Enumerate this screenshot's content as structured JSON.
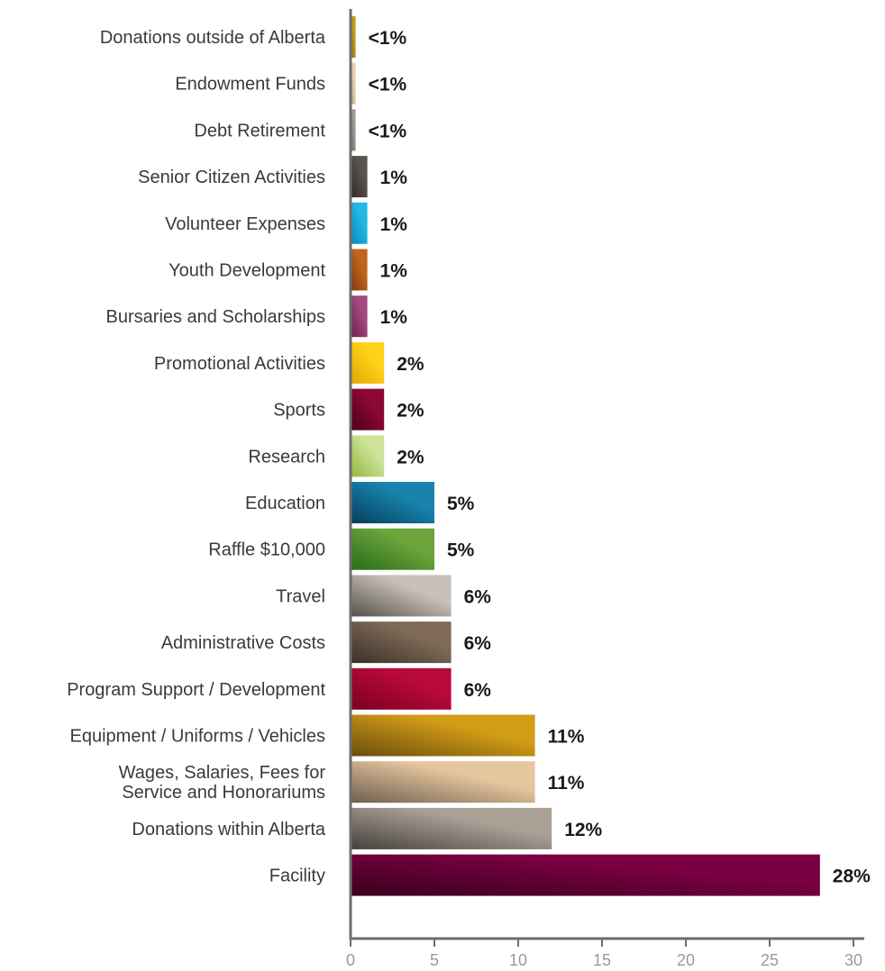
{
  "chart_data": {
    "type": "bar",
    "orientation": "horizontal",
    "title": "",
    "xlabel": "",
    "ylabel": "",
    "xlim": [
      0,
      30
    ],
    "x_ticks": [
      0,
      5,
      10,
      15,
      20,
      25,
      30
    ],
    "grid": false,
    "legend": "none",
    "categories": [
      {
        "lines": [
          "Donations outside of Alberta"
        ],
        "value": 0.3,
        "label": "<1%",
        "colors": [
          "#8a6a12",
          "#c29a1c"
        ]
      },
      {
        "lines": [
          "Endowment Funds"
        ],
        "value": 0.3,
        "label": "<1%",
        "colors": [
          "#b59c80",
          "#e8cfae"
        ]
      },
      {
        "lines": [
          "Debt Retirement"
        ],
        "value": 0.3,
        "label": "<1%",
        "colors": [
          "#6e6864",
          "#a29a93"
        ]
      },
      {
        "lines": [
          "Senior Citizen Activities"
        ],
        "value": 1,
        "label": "1%",
        "colors": [
          "#2e2a28",
          "#5a524d"
        ]
      },
      {
        "lines": [
          "Volunteer Expenses"
        ],
        "value": 1,
        "label": "1%",
        "colors": [
          "#0a86b8",
          "#22b8e6"
        ]
      },
      {
        "lines": [
          "Youth Development"
        ],
        "value": 1,
        "label": "1%",
        "colors": [
          "#7a3a0c",
          "#c2651c"
        ]
      },
      {
        "lines": [
          "Bursaries and Scholarships"
        ],
        "value": 1,
        "label": "1%",
        "colors": [
          "#6a1e4a",
          "#a24a80"
        ]
      },
      {
        "lines": [
          "Promotional Activities"
        ],
        "value": 2,
        "label": "2%",
        "colors": [
          "#e2a600",
          "#ffd21a"
        ]
      },
      {
        "lines": [
          "Sports"
        ],
        "value": 2,
        "label": "2%",
        "colors": [
          "#4a0018",
          "#8e0834"
        ]
      },
      {
        "lines": [
          "Research"
        ],
        "value": 2,
        "label": "2%",
        "colors": [
          "#93b83c",
          "#cde39a"
        ]
      },
      {
        "lines": [
          "Education"
        ],
        "value": 5,
        "label": "5%",
        "colors": [
          "#063e5a",
          "#1884ae"
        ]
      },
      {
        "lines": [
          "Raffle $10,000"
        ],
        "value": 5,
        "label": "5%",
        "colors": [
          "#2a6a1a",
          "#6aa43a"
        ]
      },
      {
        "lines": [
          "Travel"
        ],
        "value": 6,
        "label": "6%",
        "colors": [
          "#55504b",
          "#c9c1b9"
        ]
      },
      {
        "lines": [
          "Administrative Costs"
        ],
        "value": 6,
        "label": "6%",
        "colors": [
          "#3a3029",
          "#7e6a56"
        ]
      },
      {
        "lines": [
          "Program Support / Development"
        ],
        "value": 6,
        "label": "6%",
        "colors": [
          "#7a0022",
          "#b8093a"
        ]
      },
      {
        "lines": [
          "Equipment / Uniforms / Vehicles"
        ],
        "value": 11,
        "label": "11%",
        "colors": [
          "#6a4c0e",
          "#d19c16"
        ]
      },
      {
        "lines": [
          "Wages, Salaries, Fees for",
          "Service and Honorariums"
        ],
        "value": 11,
        "label": "11%",
        "colors": [
          "#6e5e50",
          "#e6c69e"
        ]
      },
      {
        "lines": [
          "Donations within Alberta"
        ],
        "value": 12,
        "label": "12%",
        "colors": [
          "#45403c",
          "#aba096"
        ]
      },
      {
        "lines": [
          "Facility"
        ],
        "value": 28,
        "label": "28%",
        "colors": [
          "#3a001e",
          "#7a0042"
        ]
      }
    ]
  }
}
